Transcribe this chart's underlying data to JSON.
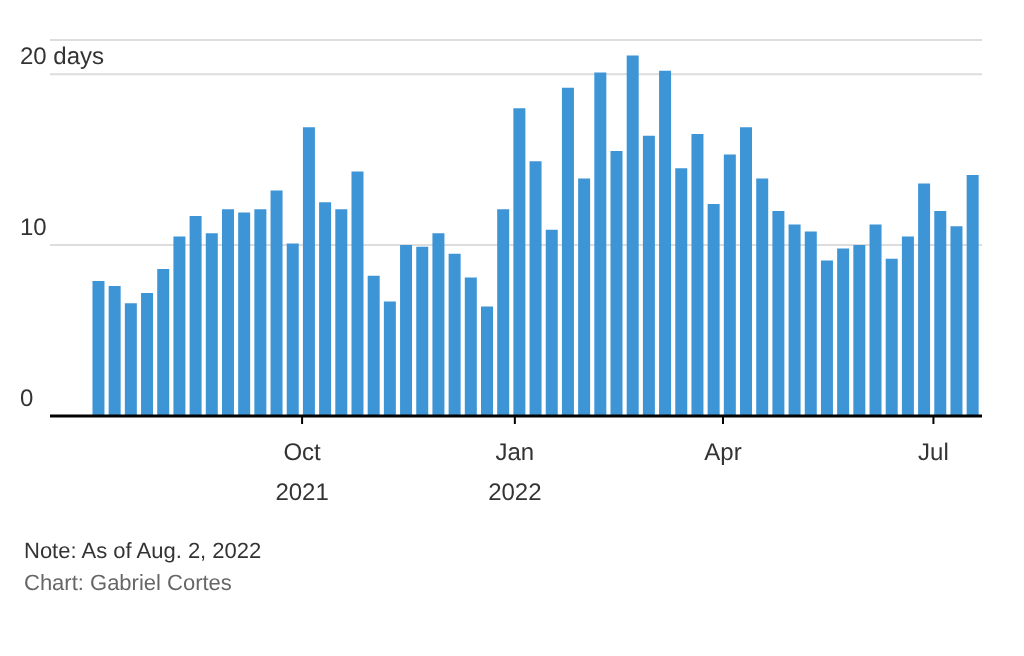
{
  "chart_data": {
    "type": "bar",
    "x": [
      "2021-07-05",
      "2021-07-12",
      "2021-07-19",
      "2021-07-26",
      "2021-08-02",
      "2021-08-09",
      "2021-08-16",
      "2021-08-23",
      "2021-08-30",
      "2021-09-06",
      "2021-09-13",
      "2021-09-20",
      "2021-09-27",
      "2021-10-04",
      "2021-10-11",
      "2021-10-18",
      "2021-10-25",
      "2021-11-01",
      "2021-11-08",
      "2021-11-15",
      "2021-11-22",
      "2021-11-29",
      "2021-12-06",
      "2021-12-13",
      "2021-12-20",
      "2021-12-27",
      "2022-01-03",
      "2022-01-10",
      "2022-01-17",
      "2022-01-24",
      "2022-01-31",
      "2022-02-07",
      "2022-02-14",
      "2022-02-21",
      "2022-02-28",
      "2022-03-07",
      "2022-03-14",
      "2022-03-21",
      "2022-03-28",
      "2022-04-04",
      "2022-04-11",
      "2022-04-18",
      "2022-04-25",
      "2022-05-02",
      "2022-05-09",
      "2022-05-16",
      "2022-05-23",
      "2022-05-30",
      "2022-06-06",
      "2022-06-13",
      "2022-06-20",
      "2022-06-27",
      "2022-07-04",
      "2022-07-11",
      "2022-07-18"
    ],
    "values": [
      7.9,
      7.6,
      6.6,
      7.2,
      8.6,
      10.5,
      11.7,
      10.7,
      12.1,
      11.9,
      12.1,
      13.2,
      10.1,
      16.9,
      12.5,
      12.1,
      14.3,
      8.2,
      6.7,
      10.0,
      9.9,
      10.7,
      9.5,
      8.1,
      6.4,
      12.1,
      18.0,
      14.9,
      10.9,
      19.2,
      13.9,
      20.1,
      15.5,
      21.1,
      16.4,
      20.2,
      14.5,
      16.5,
      12.4,
      15.3,
      16.9,
      13.9,
      12.0,
      11.2,
      10.8,
      9.1,
      9.8,
      10.0,
      11.2,
      9.2,
      10.5,
      13.6,
      12.0,
      11.1,
      14.1
    ],
    "color": "#3d95d6",
    "xlim": [
      "2021-06-14",
      "2022-07-22"
    ],
    "xticks": [
      {
        "value": "2021-10-01",
        "label": "Oct\n2021"
      },
      {
        "value": "2022-01-01",
        "label": "Jan\n2022"
      },
      {
        "value": "2022-04-01",
        "label": "Apr"
      },
      {
        "value": "2022-07-01",
        "label": "Jul"
      }
    ],
    "ylim": [
      0,
      22
    ],
    "yticks": [
      0,
      10,
      {
        "value": 20,
        "label": "20 days"
      }
    ],
    "grid": "y",
    "legend": false,
    "annotations": [
      "Note: As of Aug. 2, 2022",
      "Chart: Gabriel Cortes"
    ]
  }
}
